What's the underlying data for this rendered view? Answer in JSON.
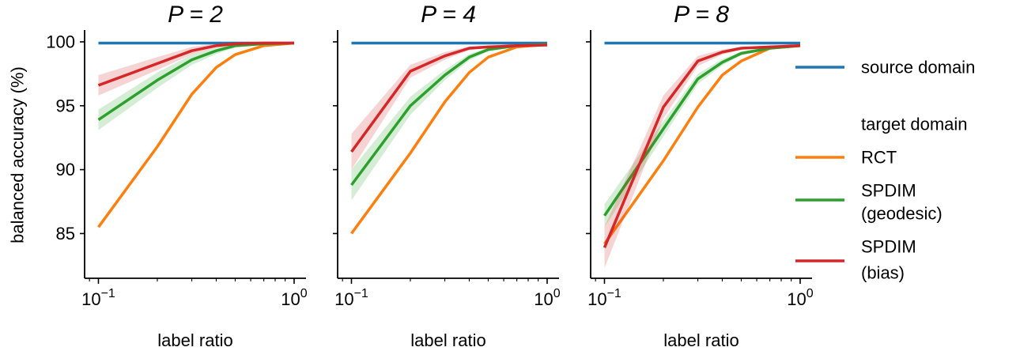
{
  "chart_data": {
    "type": "line",
    "ylabel": "balanced accuracy (%)",
    "xscale": "log",
    "xlim": [
      0.085,
      1.15
    ],
    "ylim": [
      81.5,
      100.8
    ],
    "yticks": [
      85,
      90,
      95,
      100
    ],
    "xticks": [
      {
        "value": 0.1,
        "base": "10",
        "exp": "−1"
      },
      {
        "value": 1,
        "base": "10",
        "exp": "0"
      }
    ],
    "x": [
      0.1,
      0.2,
      0.3,
      0.4,
      0.5,
      0.7,
      1.0
    ],
    "colors": {
      "source": "#1f77b4",
      "RCT": "#ff7f0e",
      "SPDIM (geodesic)": "#2ca02c",
      "SPDIM (bias)": "#d62728"
    },
    "panels": [
      {
        "title": "P = 2",
        "xlabel": "label ratio",
        "series": [
          {
            "name": "source domain",
            "values": [
              99.9,
              99.9,
              99.9,
              99.9,
              99.9,
              99.9,
              99.9
            ],
            "band": [
              0,
              0,
              0,
              0,
              0,
              0,
              0
            ]
          },
          {
            "name": "RCT",
            "values": [
              85.5,
              91.8,
              95.9,
              98.0,
              99.0,
              99.7,
              99.9
            ],
            "band": [
              0,
              0,
              0,
              0,
              0,
              0,
              0
            ]
          },
          {
            "name": "SPDIM (geodesic)",
            "values": [
              93.9,
              97.0,
              98.6,
              99.3,
              99.7,
              99.85,
              99.9
            ],
            "band": [
              0.8,
              0.6,
              0.4,
              0.25,
              0.15,
              0.1,
              0.05
            ]
          },
          {
            "name": "SPDIM (bias)",
            "values": [
              96.6,
              98.3,
              99.3,
              99.7,
              99.85,
              99.9,
              99.9
            ],
            "band": [
              0.8,
              0.5,
              0.3,
              0.15,
              0.1,
              0.05,
              0.05
            ]
          }
        ]
      },
      {
        "title": "P = 4",
        "xlabel": "label ratio",
        "series": [
          {
            "name": "source domain",
            "values": [
              99.9,
              99.9,
              99.9,
              99.9,
              99.9,
              99.9,
              99.9
            ],
            "band": [
              0,
              0,
              0,
              0,
              0,
              0,
              0
            ]
          },
          {
            "name": "RCT",
            "values": [
              85.0,
              91.3,
              95.3,
              97.6,
              98.8,
              99.6,
              99.8
            ],
            "band": [
              0,
              0,
              0,
              0,
              0,
              0,
              0
            ]
          },
          {
            "name": "SPDIM (geodesic)",
            "values": [
              88.8,
              95.0,
              97.4,
              98.8,
              99.4,
              99.7,
              99.8
            ],
            "band": [
              1.2,
              0.7,
              0.4,
              0.25,
              0.15,
              0.1,
              0.05
            ]
          },
          {
            "name": "SPDIM (bias)",
            "values": [
              91.4,
              97.7,
              98.9,
              99.5,
              99.6,
              99.7,
              99.75
            ],
            "band": [
              1.4,
              0.5,
              0.3,
              0.15,
              0.1,
              0.05,
              0.05
            ]
          }
        ]
      },
      {
        "title": "P = 8",
        "xlabel": "label ratio",
        "series": [
          {
            "name": "source domain",
            "values": [
              99.9,
              99.9,
              99.9,
              99.9,
              99.9,
              99.9,
              99.9
            ],
            "band": [
              0,
              0,
              0,
              0,
              0,
              0,
              0
            ]
          },
          {
            "name": "RCT",
            "values": [
              84.2,
              90.7,
              94.9,
              97.4,
              98.5,
              99.5,
              99.7
            ],
            "band": [
              0,
              0,
              0,
              0,
              0,
              0,
              0
            ]
          },
          {
            "name": "SPDIM (geodesic)",
            "values": [
              86.4,
              93.2,
              97.1,
              98.4,
              99.1,
              99.5,
              99.7
            ],
            "band": [
              0.9,
              0.6,
              0.4,
              0.25,
              0.15,
              0.1,
              0.05
            ]
          },
          {
            "name": "SPDIM (bias)",
            "values": [
              83.9,
              94.9,
              98.5,
              99.2,
              99.5,
              99.6,
              99.7
            ],
            "band": [
              1.6,
              0.9,
              0.4,
              0.2,
              0.1,
              0.05,
              0.05
            ]
          }
        ]
      }
    ],
    "legend": {
      "position": "right",
      "entries": [
        {
          "label": "source domain",
          "color": "#1f77b4"
        },
        {
          "heading": "target domain"
        },
        {
          "label": "RCT",
          "color": "#ff7f0e"
        },
        {
          "label": "SPDIM",
          "label2": "(geodesic)",
          "color": "#2ca02c"
        },
        {
          "label": "SPDIM",
          "label2": "(bias)",
          "color": "#d62728"
        }
      ]
    }
  }
}
